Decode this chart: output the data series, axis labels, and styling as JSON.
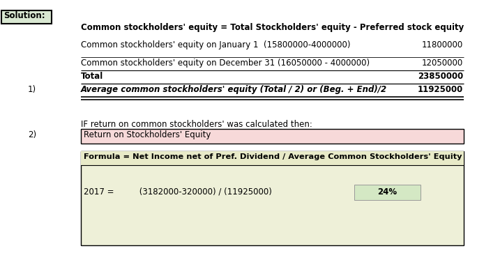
{
  "bg_color": "#ffffff",
  "solution_label": "Solution:",
  "solution_bg": "#d9e8d2",
  "solution_border": "#000000",
  "line1": "Common stockholders' equity = Total Stockholders' equity - Preferred stock equity",
  "line2_label": "Common stockholders' equity on January 1  (15800000-4000000)",
  "line2_value": "11800000",
  "line3_label": "Common stockholders' equity on December 31 (16050000 - 4000000)",
  "line3_value": "12050000",
  "line4_label": "Total",
  "line4_value": "23850000",
  "item1_label": "Average common stockholders' equity (Total / 2) or (Beg. + End)/2",
  "item1_value": "11925000",
  "item1_number": "1)",
  "line5": "IF return on common stockholders' was calculated then:",
  "item2_number": "2)",
  "item2_label": "Return on Stockholders' Equity",
  "item2_bg": "#f7d9d9",
  "item2_border": "#000000",
  "formula_label": "Formula = Net Income net of Pref. Dividend / Average Common Stockholders' Equity",
  "formula_bg": "#eef0d8",
  "formula_border": "#000000",
  "calc_year": "2017 =",
  "calc_formula": "     (3182000-320000) / (11925000)",
  "calc_result": "24%",
  "calc_result_bg": "#d4e8c4"
}
